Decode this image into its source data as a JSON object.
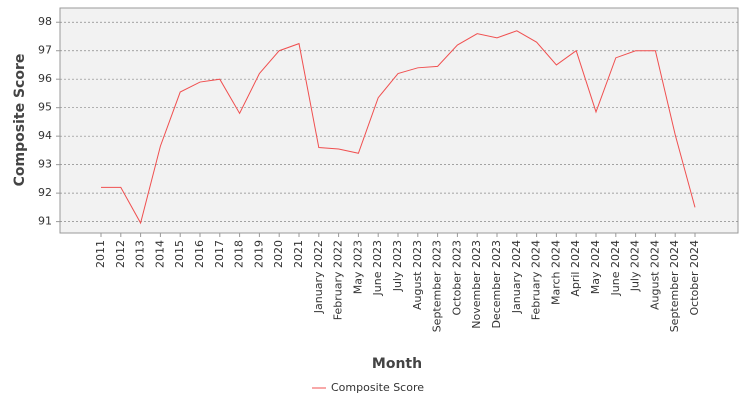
{
  "chart_data": {
    "type": "line",
    "x_label": "Month",
    "y_label": "Composite Score",
    "categories": [
      "2011",
      "2012",
      "2013",
      "2014",
      "2015",
      "2016",
      "2017",
      "2018",
      "2019",
      "2020",
      "2021",
      "January 2022",
      "February 2022",
      "May 2023",
      "June 2023",
      "July 2023",
      "August 2023",
      "September 2023",
      "October 2023",
      "November 2023",
      "December 2023",
      "January 2024",
      "February 2024",
      "March 2024",
      "April 2024",
      "May 2024",
      "June 2024",
      "July 2024",
      "August 2024",
      "September 2024",
      "October 2024"
    ],
    "series": [
      {
        "name": "Composite Score",
        "color": "#f05050",
        "values": [
          92.2,
          92.2,
          90.95,
          93.65,
          95.55,
          95.9,
          96.0,
          94.8,
          96.2,
          97.0,
          97.25,
          93.6,
          93.55,
          93.4,
          95.35,
          96.2,
          96.4,
          96.45,
          97.2,
          97.6,
          97.45,
          97.7,
          97.3,
          96.5,
          97.0,
          94.85,
          96.75,
          97.0,
          97.0,
          94.05,
          91.5
        ]
      }
    ],
    "ylim": [
      90.6,
      98.5
    ],
    "yticks": [
      91,
      92,
      93,
      94,
      95,
      96,
      97,
      98
    ],
    "grid": true,
    "legend": "bottom"
  }
}
